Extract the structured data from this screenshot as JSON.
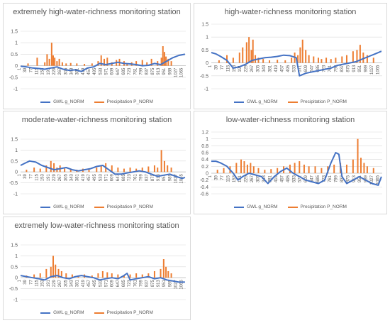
{
  "colors": {
    "gwl": "#4472c4",
    "precip": "#ed7d31",
    "grid": "#d9d9d9",
    "axis": "#bfbfbf"
  },
  "x_ticks": [
    "1",
    "39",
    "77",
    "115",
    "153",
    "191",
    "229",
    "267",
    "305",
    "343",
    "381",
    "419",
    "457",
    "495",
    "533",
    "571",
    "609",
    "647",
    "685",
    "723",
    "761",
    "799",
    "837",
    "875",
    "913",
    "951",
    "989",
    "1027",
    "1065"
  ],
  "chart_data": [
    {
      "type": "line",
      "title": "extremely high-water-richness monitoring station",
      "legend": "bottom",
      "ylim": [
        -1,
        1.5
      ],
      "yticks": [
        "1.5",
        "1",
        "0.5",
        "0",
        "-0.5",
        "-1"
      ],
      "series": [
        {
          "name": "GWL g_NORM",
          "kind": "line",
          "x": [
            1,
            40,
            80,
            120,
            160,
            200,
            240,
            280,
            320,
            360,
            400,
            440,
            480,
            520,
            560,
            600,
            640,
            680,
            720,
            760,
            800,
            840,
            880,
            920,
            960,
            1000,
            1040,
            1080
          ],
          "values": [
            -0.02,
            -0.05,
            -0.1,
            -0.12,
            -0.15,
            -0.1,
            -0.05,
            -0.15,
            -0.2,
            -0.18,
            -0.25,
            -0.1,
            -0.05,
            0.1,
            0.05,
            0.1,
            0.15,
            0.1,
            0.08,
            0.05,
            0.0,
            0.02,
            0.1,
            0.05,
            0.2,
            0.35,
            0.45,
            0.5
          ]
        },
        {
          "name": "Precipitation P_NORM",
          "kind": "bar",
          "x": [
            50,
            110,
            160,
            175,
            190,
            205,
            215,
            225,
            240,
            255,
            275,
            300,
            330,
            370,
            420,
            470,
            510,
            530,
            550,
            570,
            600,
            630,
            650,
            680,
            700,
            730,
            760,
            800,
            830,
            860,
            900,
            925,
            935,
            945,
            955,
            970,
            990
          ],
          "values": [
            0.1,
            0.35,
            0.15,
            0.5,
            0.3,
            1.0,
            0.45,
            0.35,
            0.2,
            0.3,
            0.15,
            0.1,
            0.12,
            0.1,
            0.08,
            0.1,
            0.2,
            0.45,
            0.3,
            0.35,
            0.15,
            0.25,
            0.3,
            0.2,
            0.1,
            0.15,
            0.2,
            0.25,
            0.15,
            0.3,
            0.2,
            0.35,
            0.85,
            0.6,
            0.4,
            0.3,
            0.2
          ]
        }
      ]
    },
    {
      "type": "line",
      "title": "high-water-richness monitoring station",
      "legend": "bottom",
      "ylim": [
        -1,
        1.5
      ],
      "yticks": [
        "1.5",
        "1",
        "0.5",
        "0",
        "-0.5",
        "-1"
      ],
      "series": [
        {
          "name": "GWL g_NORM",
          "kind": "line",
          "x": [
            1,
            30,
            60,
            100,
            140,
            180,
            220,
            260,
            300,
            340,
            380,
            420,
            460,
            500,
            540,
            560,
            600,
            640,
            680,
            720,
            760,
            800,
            840,
            880,
            920,
            960,
            1000,
            1040,
            1080
          ],
          "values": [
            0.4,
            0.35,
            0.25,
            0.1,
            -0.2,
            -0.15,
            -0.05,
            0.1,
            0.15,
            0.2,
            0.22,
            0.25,
            0.3,
            0.28,
            0.2,
            -0.5,
            -0.4,
            -0.35,
            -0.3,
            -0.25,
            -0.2,
            -0.1,
            -0.05,
            0.0,
            0.05,
            0.15,
            0.25,
            0.35,
            0.45
          ]
        },
        {
          "name": "Precipitation P_NORM",
          "kind": "bar",
          "x": [
            50,
            100,
            140,
            180,
            200,
            225,
            240,
            255,
            265,
            280,
            300,
            330,
            370,
            420,
            470,
            510,
            530,
            550,
            565,
            580,
            600,
            620,
            650,
            680,
            700,
            730,
            760,
            790,
            830,
            860,
            900,
            925,
            945,
            965,
            990,
            1030
          ],
          "values": [
            0.1,
            0.3,
            0.2,
            0.4,
            0.6,
            0.8,
            1.0,
            0.5,
            0.9,
            0.3,
            0.2,
            0.15,
            0.1,
            0.12,
            0.1,
            0.2,
            0.4,
            0.3,
            0.6,
            0.9,
            0.5,
            0.3,
            0.25,
            0.2,
            0.15,
            0.2,
            0.15,
            0.2,
            0.25,
            0.3,
            0.45,
            0.5,
            0.7,
            0.4,
            0.3,
            0.2
          ]
        }
      ]
    },
    {
      "type": "line",
      "title": "moderate-water-richness monitoring station",
      "legend": "bottom",
      "ylim": [
        -1,
        1.5
      ],
      "yticks": [
        "1.5",
        "1",
        "0.5",
        "0",
        "-0.5",
        "-1"
      ],
      "series": [
        {
          "name": "GWL g_NORM",
          "kind": "line",
          "x": [
            1,
            30,
            60,
            100,
            140,
            180,
            220,
            260,
            300,
            340,
            380,
            420,
            460,
            500,
            540,
            580,
            620,
            660,
            700,
            740,
            780,
            820,
            860,
            900,
            940,
            980,
            1020,
            1060,
            1080
          ],
          "values": [
            0.3,
            0.4,
            0.5,
            0.45,
            0.3,
            0.2,
            0.1,
            0.15,
            0.2,
            0.1,
            0.05,
            0.1,
            0.15,
            0.25,
            0.3,
            0.1,
            -0.1,
            -0.1,
            -0.05,
            0.0,
            0.05,
            0.0,
            -0.1,
            -0.2,
            -0.15,
            -0.1,
            -0.2,
            -0.3,
            -0.25
          ]
        },
        {
          "name": "Precipitation P_NORM",
          "kind": "bar",
          "x": [
            40,
            90,
            130,
            170,
            200,
            220,
            240,
            260,
            290,
            330,
            370,
            410,
            450,
            500,
            530,
            560,
            600,
            640,
            680,
            720,
            760,
            800,
            840,
            880,
            900,
            925,
            945,
            965,
            990
          ],
          "values": [
            0.1,
            0.2,
            0.15,
            0.3,
            0.5,
            0.4,
            0.2,
            0.3,
            0.15,
            0.1,
            0.1,
            0.15,
            0.1,
            0.2,
            0.3,
            0.4,
            0.3,
            0.2,
            0.15,
            0.2,
            0.15,
            0.2,
            0.25,
            0.3,
            0.2,
            1.0,
            0.5,
            0.3,
            0.2
          ]
        }
      ]
    },
    {
      "type": "line",
      "title": "low-water-richness monitoring station",
      "legend": "bottom",
      "ylim": [
        -0.6,
        1.2
      ],
      "yticks": [
        "1.2",
        "1",
        "0.8",
        "0.6",
        "0.4",
        "0.2",
        "0",
        "-0.2",
        "-0.4",
        "-0.6"
      ],
      "series": [
        {
          "name": "GWL g_NORM",
          "kind": "line",
          "x": [
            1,
            30,
            60,
            100,
            140,
            170,
            200,
            240,
            280,
            320,
            360,
            400,
            440,
            480,
            520,
            560,
            600,
            640,
            680,
            720,
            760,
            790,
            810,
            830,
            860,
            900,
            940,
            980,
            1020,
            1060,
            1080
          ],
          "values": [
            0.35,
            0.35,
            0.3,
            0.2,
            0.0,
            -0.2,
            -0.1,
            0.0,
            -0.05,
            -0.1,
            -0.3,
            -0.1,
            0.05,
            0.15,
            0.0,
            -0.1,
            -0.2,
            -0.25,
            -0.3,
            -0.2,
            0.3,
            0.6,
            0.55,
            -0.1,
            -0.3,
            -0.2,
            -0.1,
            -0.2,
            -0.3,
            -0.35,
            -0.1
          ]
        },
        {
          "name": "Precipitation P_NORM",
          "kind": "bar",
          "x": [
            40,
            80,
            120,
            160,
            190,
            210,
            230,
            250,
            270,
            300,
            340,
            380,
            420,
            460,
            500,
            530,
            560,
            590,
            620,
            660,
            700,
            740,
            780,
            820,
            860,
            900,
            930,
            950,
            970,
            990,
            1030
          ],
          "values": [
            0.1,
            0.15,
            0.2,
            0.3,
            0.4,
            0.35,
            0.25,
            0.3,
            0.2,
            0.15,
            0.1,
            0.12,
            0.15,
            0.2,
            0.25,
            0.3,
            0.35,
            0.25,
            0.2,
            0.2,
            0.15,
            0.2,
            0.25,
            0.3,
            0.25,
            0.4,
            1.0,
            0.45,
            0.3,
            0.2,
            0.15
          ]
        }
      ]
    },
    {
      "type": "line",
      "title": "extremely low-water-richness monitoring station",
      "legend": "bottom",
      "ylim": [
        -1,
        1.5
      ],
      "yticks": [
        "1.5",
        "1",
        "0.5",
        "0",
        "-0.5",
        "-1"
      ],
      "series": [
        {
          "name": "GWL g_NORM",
          "kind": "line",
          "x": [
            1,
            40,
            80,
            120,
            160,
            200,
            240,
            280,
            320,
            360,
            400,
            440,
            480,
            520,
            560,
            600,
            640,
            680,
            700,
            720,
            760,
            800,
            840,
            880,
            920,
            960,
            1000,
            1040,
            1080
          ],
          "values": [
            0.1,
            0.05,
            0.0,
            -0.05,
            -0.1,
            0.05,
            0.1,
            0.0,
            -0.05,
            0.05,
            0.1,
            0.05,
            0.0,
            -0.1,
            -0.05,
            0.0,
            -0.05,
            0.1,
            0.2,
            -0.1,
            -0.05,
            0.0,
            0.05,
            -0.05,
            0.0,
            -0.1,
            -0.15,
            -0.2,
            -0.2
          ]
        },
        {
          "name": "Precipitation P_NORM",
          "kind": "bar",
          "x": [
            40,
            90,
            130,
            170,
            200,
            215,
            230,
            250,
            270,
            300,
            340,
            380,
            420,
            470,
            510,
            540,
            570,
            600,
            640,
            680,
            720,
            760,
            800,
            840,
            880,
            920,
            940,
            955,
            970,
            990
          ],
          "values": [
            0.1,
            0.15,
            0.2,
            0.4,
            0.5,
            1.0,
            0.6,
            0.4,
            0.3,
            0.2,
            0.15,
            0.1,
            0.15,
            0.1,
            0.2,
            0.3,
            0.25,
            0.2,
            0.15,
            0.1,
            0.15,
            0.2,
            0.15,
            0.2,
            0.3,
            0.4,
            0.85,
            0.5,
            0.3,
            0.2
          ]
        }
      ]
    }
  ]
}
